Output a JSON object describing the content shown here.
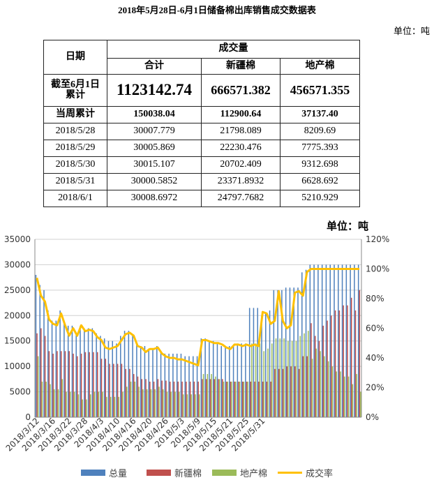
{
  "title": "2018年5月28日-6月1日储备棉出库销售成交数据表",
  "unit": "单位：吨",
  "table": {
    "date_header": "日期",
    "group_header": "成交量",
    "col_headers": [
      "合计",
      "新疆棉",
      "地产棉"
    ],
    "cumulative_label_line1": "截至6月1日",
    "cumulative_label_line2": "累计",
    "cumulative_values": [
      "1123142.74",
      "666571.382",
      "456571.355"
    ],
    "week_label": "当周累计",
    "week_values": [
      "150038.04",
      "112900.64",
      "37137.40"
    ],
    "rows": [
      {
        "date": "2018/5/28",
        "total": "30007.779",
        "xinjiang": "21798.089",
        "local": "8209.69"
      },
      {
        "date": "2018/5/29",
        "total": "30005.869",
        "xinjiang": "22230.476",
        "local": "7775.393"
      },
      {
        "date": "2018/5/30",
        "total": "30015.107",
        "xinjiang": "20702.409",
        "local": "9312.698"
      },
      {
        "date": "2018/5/31",
        "total": "30000.5852",
        "xinjiang": "23371.8932",
        "local": "6628.692"
      },
      {
        "date": "2018/6/1",
        "total": "30008.6972",
        "xinjiang": "24797.7682",
        "local": "5210.929"
      }
    ]
  },
  "chart_data": {
    "type": "bar",
    "unit_label": "单位：吨",
    "y_ticks": [
      "0",
      "5000",
      "10000",
      "15000",
      "20000",
      "25000",
      "30000",
      "35000"
    ],
    "y2_ticks": [
      "0%",
      "20%",
      "40%",
      "60%",
      "80%",
      "100%",
      "120%"
    ],
    "ylim": [
      0,
      35000
    ],
    "y2lim": [
      0,
      1.2
    ],
    "x_tick_labels": [
      "2018/3/12",
      "2018/3/16",
      "2018/3/22",
      "2018/3/28",
      "2018/4/3",
      "2018/4/10",
      "2018/4/16",
      "2018/4/20",
      "2018/4/26",
      "2018/5/3",
      "2018/5/9",
      "2018/5/15",
      "2018/5/21",
      "2018/5/25",
      "2018/5/31"
    ],
    "x_tick_every": 4,
    "colors": {
      "total": "#4F81BD",
      "xinjiang": "#C0504D",
      "local": "#9BBB59",
      "rate": "#FFC000"
    },
    "series": [
      {
        "name": "总量",
        "kind": "bar",
        "values": [
          28000,
          26000,
          25000,
          21000,
          19000,
          19000,
          21000,
          19000,
          18000,
          18000,
          16500,
          18000,
          17500,
          17500,
          17500,
          16500,
          16000,
          15500,
          15000,
          15000,
          14500,
          16000,
          17000,
          17000,
          16000,
          14500,
          14000,
          14000,
          13500,
          13500,
          14000,
          13000,
          12500,
          12500,
          12500,
          12500,
          12500,
          12000,
          12000,
          12000,
          12000,
          15500,
          15500,
          15000,
          15000,
          14500,
          14000,
          14000,
          14000,
          14000,
          14500,
          14500,
          14500,
          21500,
          21500,
          21500,
          20000,
          20500,
          21000,
          25000,
          25000,
          25000,
          25500,
          25500,
          25500,
          25500,
          28500,
          29000,
          30000,
          30000,
          30000,
          30000,
          30000,
          30000,
          30000,
          30000,
          30000,
          30000,
          30000,
          30000,
          30000
        ]
      },
      {
        "name": "新疆棉",
        "kind": "bar",
        "values": [
          16500,
          17500,
          16000,
          13000,
          12500,
          13000,
          13000,
          13000,
          13000,
          12500,
          12000,
          12500,
          12800,
          12800,
          12800,
          12800,
          11500,
          11500,
          10500,
          10500,
          10500,
          10500,
          9500,
          9500,
          8500,
          8000,
          7500,
          7500,
          7000,
          7000,
          7500,
          7200,
          7200,
          7000,
          7000,
          7000,
          7000,
          7000,
          7000,
          7000,
          7000,
          7500,
          7500,
          7500,
          7500,
          7500,
          7500,
          7000,
          7000,
          7000,
          7000,
          7000,
          7000,
          7000,
          7000,
          7000,
          7000,
          7000,
          7000,
          9500,
          9500,
          9500,
          10000,
          10000,
          10000,
          9500,
          12000,
          12000,
          18500,
          16000,
          15000,
          18000,
          19000,
          20000,
          21000,
          21000,
          22000,
          22000,
          23500,
          21000,
          25000
        ]
      },
      {
        "name": "地产棉",
        "kind": "bar",
        "values": [
          12000,
          7000,
          7000,
          6500,
          5500,
          5500,
          7500,
          5000,
          5000,
          5000,
          4500,
          3500,
          3500,
          4500,
          5000,
          5000,
          5000,
          4000,
          4000,
          4000,
          4000,
          5000,
          6000,
          7000,
          7000,
          6000,
          5500,
          5500,
          5500,
          5500,
          6000,
          5500,
          5000,
          5000,
          5000,
          5000,
          4500,
          4500,
          4500,
          4500,
          4500,
          8500,
          8500,
          8500,
          8000,
          7500,
          7000,
          7000,
          7000,
          7000,
          7000,
          7000,
          7000,
          14500,
          14500,
          14500,
          13000,
          13500,
          14500,
          15500,
          15500,
          15500,
          15000,
          15000,
          15000,
          16000,
          16500,
          17000,
          11500,
          13500,
          13000,
          12000,
          11000,
          10000,
          9000,
          9000,
          8000,
          8000,
          6500,
          8500,
          5000
        ]
      },
      {
        "name": "成交率",
        "kind": "line",
        "axis": "right",
        "values": [
          0.94,
          0.82,
          0.78,
          0.66,
          0.63,
          0.62,
          0.7,
          0.62,
          0.55,
          0.6,
          0.55,
          0.62,
          0.58,
          0.59,
          0.58,
          0.54,
          0.52,
          0.47,
          0.46,
          0.47,
          0.48,
          0.52,
          0.56,
          0.57,
          0.55,
          0.48,
          0.47,
          0.44,
          0.46,
          0.46,
          0.47,
          0.43,
          0.41,
          0.4,
          0.4,
          0.39,
          0.39,
          0.38,
          0.37,
          0.36,
          0.35,
          0.52,
          0.52,
          0.51,
          0.5,
          0.5,
          0.49,
          0.47,
          0.46,
          0.49,
          0.49,
          0.48,
          0.49,
          0.48,
          0.49,
          0.48,
          0.71,
          0.7,
          0.63,
          0.65,
          0.85,
          0.65,
          0.6,
          0.62,
          0.84,
          0.85,
          0.82,
          0.98,
          1.0,
          1.0,
          1.0,
          1.0,
          1.0,
          1.0,
          1.0,
          1.0,
          1.0,
          1.0,
          1.0,
          1.0,
          1.0
        ]
      }
    ]
  }
}
